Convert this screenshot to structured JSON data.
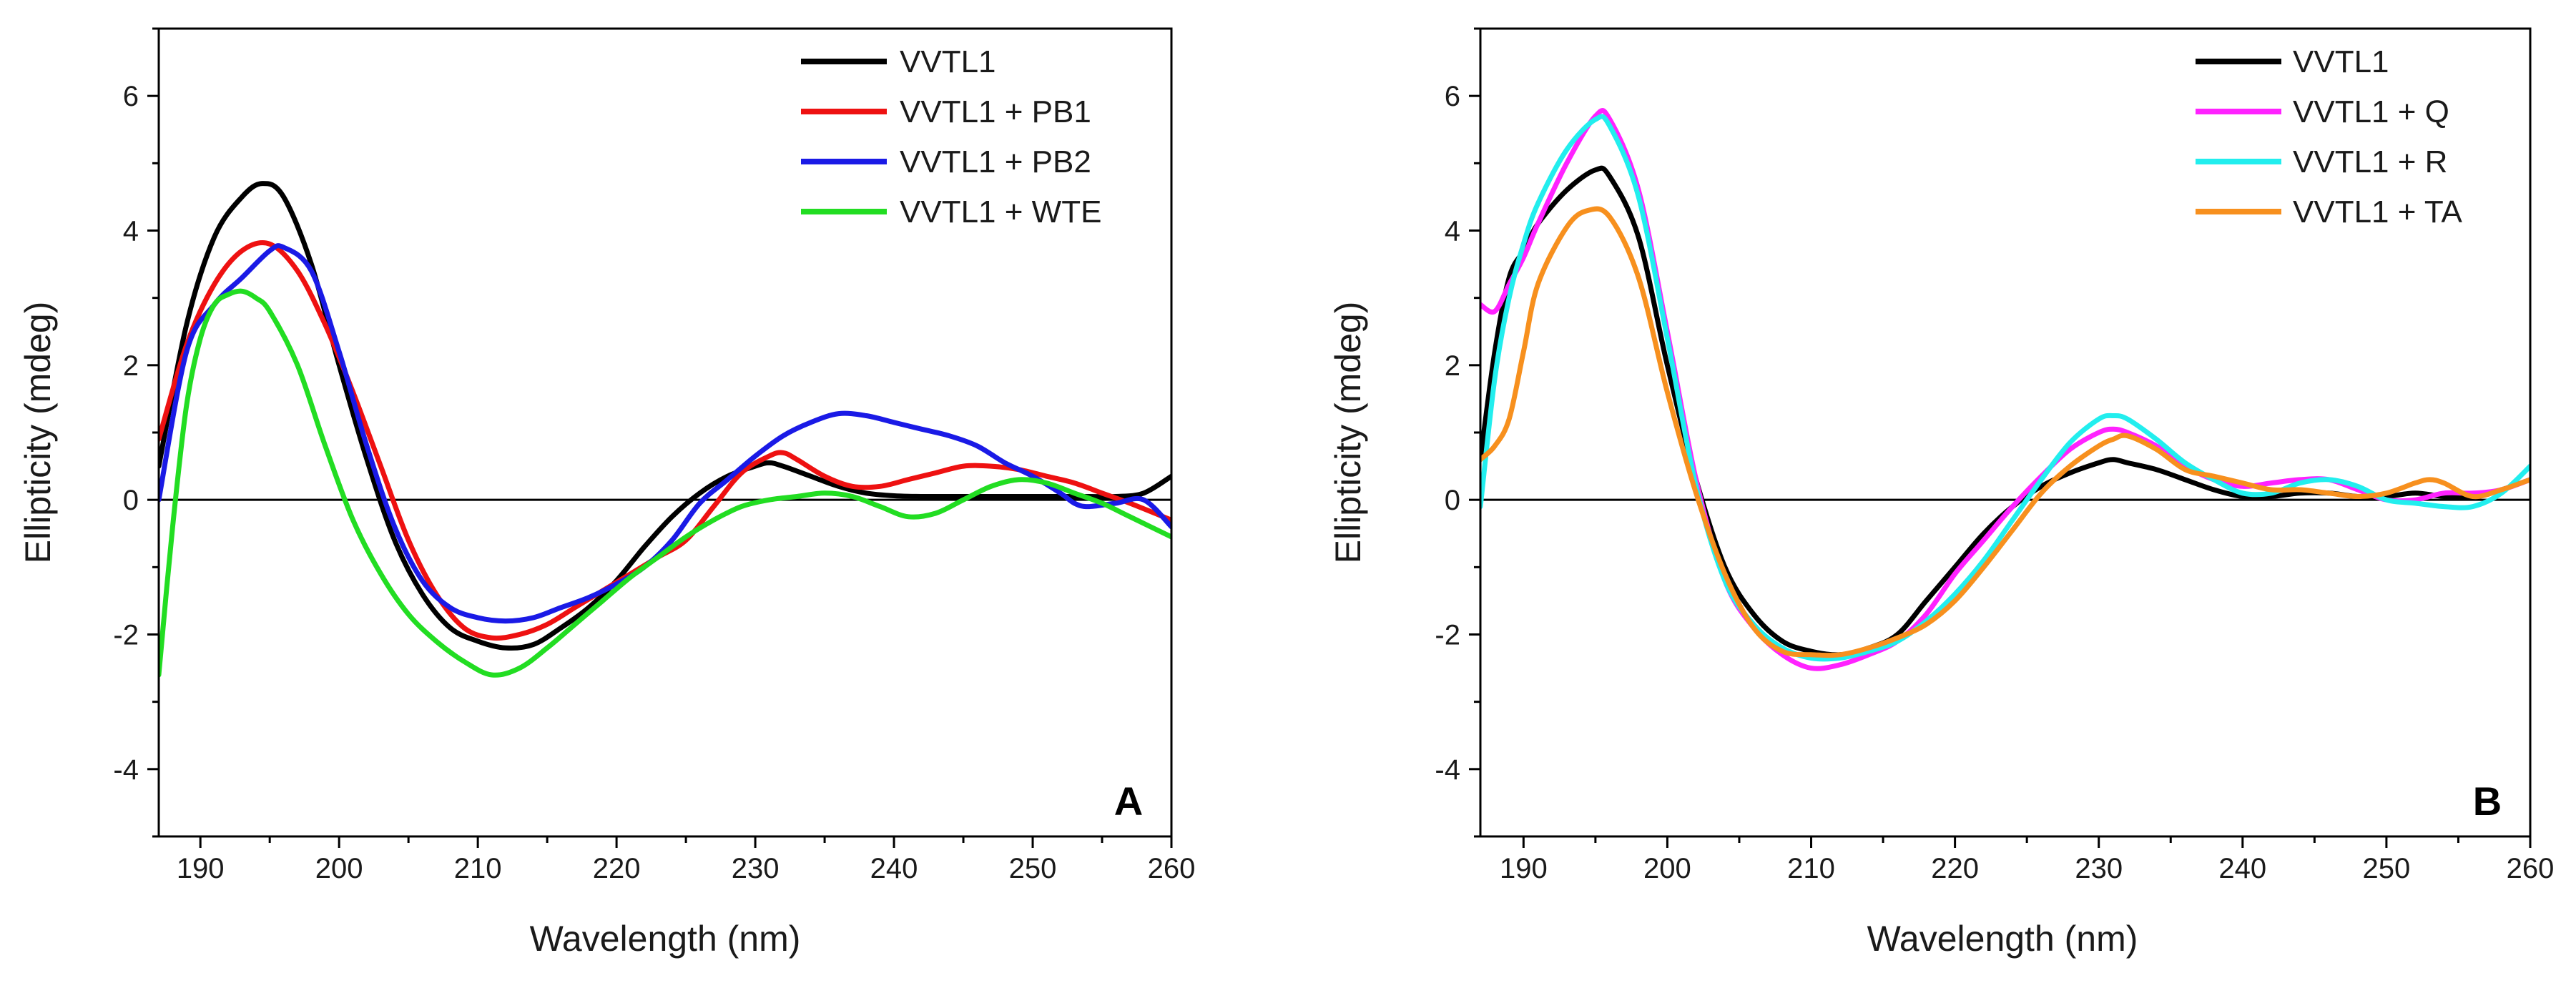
{
  "chart_data": [
    {
      "type": "line",
      "panel_label": "A",
      "xlabel": "Wavelength (nm)",
      "ylabel": "Ellipticity (mdeg)",
      "xlim": [
        187,
        260
      ],
      "ylim": [
        -5,
        7
      ],
      "xticks": [
        190,
        200,
        210,
        220,
        230,
        240,
        250,
        260
      ],
      "yticks": [
        -4,
        -2,
        0,
        2,
        4,
        6
      ],
      "xtick_labels": [
        "190",
        "200",
        "210",
        "220",
        "230",
        "240",
        "250",
        "260"
      ],
      "ytick_labels": [
        "-4",
        "-2",
        "0",
        "2",
        "4",
        "6"
      ],
      "zero_line": true,
      "grid": false,
      "legend_position": "top-right",
      "series": [
        {
          "name": "VVTL1",
          "color": "#000000",
          "x": [
            187,
            189,
            191,
            193,
            194.5,
            196,
            198,
            200,
            202,
            204,
            206,
            208,
            210,
            212,
            214,
            216,
            218,
            220,
            222,
            224,
            226,
            228,
            230,
            231,
            232,
            234,
            236,
            238,
            240,
            242,
            244,
            246,
            248,
            250,
            252,
            254,
            256,
            258,
            260
          ],
          "y": [
            0.5,
            2.6,
            3.9,
            4.5,
            4.7,
            4.5,
            3.5,
            2.0,
            0.6,
            -0.6,
            -1.4,
            -1.9,
            -2.1,
            -2.2,
            -2.15,
            -1.9,
            -1.6,
            -1.2,
            -0.7,
            -0.25,
            0.1,
            0.35,
            0.5,
            0.55,
            0.5,
            0.35,
            0.2,
            0.1,
            0.06,
            0.05,
            0.05,
            0.05,
            0.05,
            0.05,
            0.05,
            0.05,
            0.05,
            0.1,
            0.35
          ]
        },
        {
          "name": "VVTL1 + PB1",
          "color": "#ee1111",
          "x": [
            187,
            189,
            191,
            193,
            195,
            197,
            199,
            201,
            203,
            205,
            207,
            209,
            211,
            213,
            215,
            217,
            219,
            221,
            223,
            225,
            227,
            229,
            231,
            232,
            233,
            235,
            237,
            239,
            241,
            243,
            245,
            247,
            249,
            251,
            253,
            255,
            257,
            260
          ],
          "y": [
            0.9,
            2.3,
            3.2,
            3.7,
            3.8,
            3.4,
            2.6,
            1.6,
            0.5,
            -0.6,
            -1.4,
            -1.9,
            -2.05,
            -2.0,
            -1.85,
            -1.6,
            -1.35,
            -1.1,
            -0.85,
            -0.6,
            -0.1,
            0.4,
            0.65,
            0.7,
            0.6,
            0.35,
            0.2,
            0.2,
            0.3,
            0.4,
            0.5,
            0.5,
            0.45,
            0.35,
            0.25,
            0.1,
            -0.05,
            -0.3
          ]
        },
        {
          "name": "VVTL1 + PB2",
          "color": "#1a1ae6",
          "x": [
            187,
            189,
            191,
            193,
            195,
            196,
            198,
            200,
            202,
            204,
            206,
            208,
            210,
            212,
            214,
            216,
            218,
            220,
            222,
            224,
            226,
            228,
            230,
            232,
            234,
            236,
            238,
            240,
            242,
            244,
            246,
            248,
            250,
            252,
            253,
            254,
            256,
            258,
            260
          ],
          "y": [
            0.0,
            2.2,
            2.9,
            3.3,
            3.7,
            3.75,
            3.4,
            2.2,
            0.8,
            -0.4,
            -1.2,
            -1.6,
            -1.75,
            -1.8,
            -1.75,
            -1.6,
            -1.45,
            -1.25,
            -1.0,
            -0.6,
            -0.05,
            0.3,
            0.65,
            0.95,
            1.15,
            1.28,
            1.25,
            1.15,
            1.05,
            0.95,
            0.8,
            0.55,
            0.35,
            0.1,
            -0.05,
            -0.1,
            -0.05,
            0.0,
            -0.4
          ]
        },
        {
          "name": "VVTL1 + WTE",
          "color": "#22dd22",
          "x": [
            187,
            188,
            189,
            190,
            191,
            192,
            193,
            194,
            195,
            197,
            199,
            201,
            203,
            205,
            207,
            209,
            211,
            213,
            215,
            217,
            219,
            221,
            223,
            225,
            227,
            229,
            231,
            233,
            235,
            237,
            239,
            241,
            243,
            245,
            247,
            249,
            251,
            253,
            255,
            257,
            260
          ],
          "y": [
            -2.6,
            -0.4,
            1.4,
            2.4,
            2.9,
            3.05,
            3.1,
            3.0,
            2.8,
            2.0,
            0.8,
            -0.3,
            -1.1,
            -1.7,
            -2.1,
            -2.4,
            -2.6,
            -2.5,
            -2.2,
            -1.85,
            -1.5,
            -1.15,
            -0.85,
            -0.55,
            -0.3,
            -0.1,
            0.0,
            0.05,
            0.1,
            0.05,
            -0.1,
            -0.25,
            -0.2,
            0.0,
            0.2,
            0.3,
            0.25,
            0.1,
            -0.05,
            -0.25,
            -0.55
          ]
        }
      ]
    },
    {
      "type": "line",
      "panel_label": "B",
      "xlabel": "Wavelength (nm)",
      "ylabel": "Ellipticity (mdeg)",
      "xlim": [
        187,
        260
      ],
      "ylim": [
        -5,
        7
      ],
      "xticks": [
        190,
        200,
        210,
        220,
        230,
        240,
        250,
        260
      ],
      "yticks": [
        -4,
        -2,
        0,
        2,
        4,
        6
      ],
      "xtick_labels": [
        "190",
        "200",
        "210",
        "220",
        "230",
        "240",
        "250",
        "260"
      ],
      "ytick_labels": [
        "-4",
        "-2",
        "0",
        "2",
        "4",
        "6"
      ],
      "zero_line": true,
      "grid": false,
      "legend_position": "top-right",
      "series": [
        {
          "name": "VVTL1",
          "color": "#000000",
          "x": [
            187,
            188,
            189,
            190,
            191,
            193,
            195,
            196,
            198,
            200,
            202,
            204,
            206,
            208,
            210,
            212,
            214,
            216,
            218,
            220,
            222,
            224,
            226,
            228,
            230,
            231,
            232,
            234,
            236,
            238,
            240,
            242,
            244,
            246,
            248,
            250,
            252,
            254,
            256,
            258,
            260
          ],
          "y": [
            0.6,
            2.2,
            3.3,
            3.7,
            4.1,
            4.6,
            4.9,
            4.8,
            3.9,
            2.0,
            0.3,
            -1.0,
            -1.7,
            -2.1,
            -2.25,
            -2.3,
            -2.2,
            -2.0,
            -1.5,
            -1.0,
            -0.5,
            -0.1,
            0.2,
            0.4,
            0.55,
            0.6,
            0.55,
            0.45,
            0.3,
            0.15,
            0.05,
            0.05,
            0.1,
            0.1,
            0.05,
            0.05,
            0.1,
            0.05,
            0.05,
            0.15,
            0.3
          ]
        },
        {
          "name": "VVTL1 + Q",
          "color": "#ff22ff",
          "x": [
            187,
            188,
            189,
            190,
            191,
            193,
            195,
            196,
            198,
            200,
            202,
            204,
            206,
            208,
            210,
            212,
            214,
            216,
            218,
            220,
            222,
            224,
            226,
            228,
            230,
            231,
            232,
            234,
            236,
            238,
            240,
            242,
            244,
            246,
            248,
            250,
            252,
            254,
            256,
            258,
            260
          ],
          "y": [
            2.9,
            2.8,
            3.2,
            3.6,
            4.1,
            5.0,
            5.7,
            5.65,
            4.6,
            2.5,
            0.3,
            -1.2,
            -1.9,
            -2.3,
            -2.5,
            -2.45,
            -2.3,
            -2.1,
            -1.7,
            -1.1,
            -0.6,
            -0.1,
            0.35,
            0.75,
            1.0,
            1.05,
            1.0,
            0.8,
            0.5,
            0.3,
            0.2,
            0.25,
            0.3,
            0.3,
            0.15,
            0.0,
            0.0,
            0.1,
            0.1,
            0.15,
            0.3
          ]
        },
        {
          "name": "VVTL1 + R",
          "color": "#22eeee",
          "x": [
            187,
            188,
            189,
            190,
            191,
            193,
            195,
            196,
            198,
            200,
            202,
            204,
            206,
            208,
            210,
            212,
            214,
            216,
            218,
            220,
            222,
            224,
            226,
            228,
            230,
            231,
            232,
            234,
            236,
            238,
            240,
            242,
            244,
            246,
            248,
            250,
            252,
            254,
            256,
            258,
            260
          ],
          "y": [
            -0.1,
            1.8,
            3.0,
            3.8,
            4.4,
            5.2,
            5.65,
            5.55,
            4.5,
            2.4,
            0.2,
            -1.2,
            -1.85,
            -2.2,
            -2.35,
            -2.35,
            -2.25,
            -2.1,
            -1.8,
            -1.4,
            -0.9,
            -0.3,
            0.3,
            0.85,
            1.2,
            1.25,
            1.2,
            0.9,
            0.55,
            0.3,
            0.1,
            0.1,
            0.25,
            0.3,
            0.2,
            0.0,
            -0.05,
            -0.1,
            -0.1,
            0.1,
            0.5
          ]
        },
        {
          "name": "VVTL1 + TA",
          "color": "#f7901e",
          "x": [
            187,
            188,
            189,
            190,
            191,
            193,
            194.5,
            196,
            198,
            200,
            202,
            204,
            206,
            208,
            210,
            212,
            214,
            216,
            218,
            220,
            222,
            224,
            226,
            228,
            230,
            231,
            232,
            234,
            236,
            238,
            240,
            242,
            244,
            246,
            248,
            250,
            252,
            253,
            254,
            256,
            258,
            260
          ],
          "y": [
            0.6,
            0.8,
            1.2,
            2.2,
            3.2,
            4.05,
            4.3,
            4.2,
            3.3,
            1.6,
            0.1,
            -1.1,
            -1.9,
            -2.25,
            -2.3,
            -2.3,
            -2.2,
            -2.05,
            -1.85,
            -1.5,
            -1.0,
            -0.45,
            0.1,
            0.5,
            0.8,
            0.9,
            0.95,
            0.75,
            0.45,
            0.35,
            0.25,
            0.15,
            0.15,
            0.1,
            0.05,
            0.1,
            0.25,
            0.3,
            0.25,
            0.05,
            0.15,
            0.3
          ]
        }
      ]
    }
  ]
}
